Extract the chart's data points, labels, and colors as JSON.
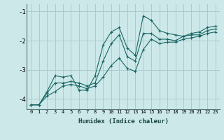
{
  "xlabel": "Humidex (Indice chaleur)",
  "xlim": [
    -0.5,
    23.5
  ],
  "ylim": [
    -4.35,
    -0.75
  ],
  "yticks": [
    -4,
    -3,
    -2,
    -1
  ],
  "bg_color": "#cce8e8",
  "grid_color": "#aacccc",
  "line_color": "#1a6666",
  "line1_y": [
    -4.2,
    -4.2,
    -3.75,
    -3.2,
    -3.25,
    -3.2,
    -3.7,
    -3.7,
    -3.2,
    -2.15,
    -1.7,
    -1.55,
    -2.25,
    -2.5,
    -1.15,
    -1.3,
    -1.65,
    -1.75,
    -1.8,
    -1.85,
    -1.75,
    -1.7,
    -1.55,
    -1.5
  ],
  "line2_y": [
    -4.2,
    -4.2,
    -3.8,
    -3.45,
    -3.45,
    -3.4,
    -3.45,
    -3.55,
    -3.45,
    -2.7,
    -2.1,
    -1.8,
    -2.55,
    -2.7,
    -1.75,
    -1.75,
    -1.95,
    -1.95,
    -2.0,
    -1.85,
    -1.8,
    -1.8,
    -1.65,
    -1.6
  ],
  "line3_y": [
    -4.2,
    -4.2,
    -3.9,
    -3.75,
    -3.55,
    -3.5,
    -3.55,
    -3.65,
    -3.55,
    -3.25,
    -2.85,
    -2.6,
    -2.95,
    -3.05,
    -2.3,
    -1.95,
    -2.1,
    -2.05,
    -2.05,
    -1.95,
    -1.9,
    -1.85,
    -1.75,
    -1.7
  ],
  "xtick_labels": [
    "0",
    "1",
    "2",
    "3",
    "4",
    "5",
    "6",
    "7",
    "8",
    "9",
    "10",
    "11",
    "12",
    "13",
    "14",
    "15",
    "16",
    "17",
    "18",
    "19",
    "20",
    "21",
    "22",
    "23"
  ]
}
